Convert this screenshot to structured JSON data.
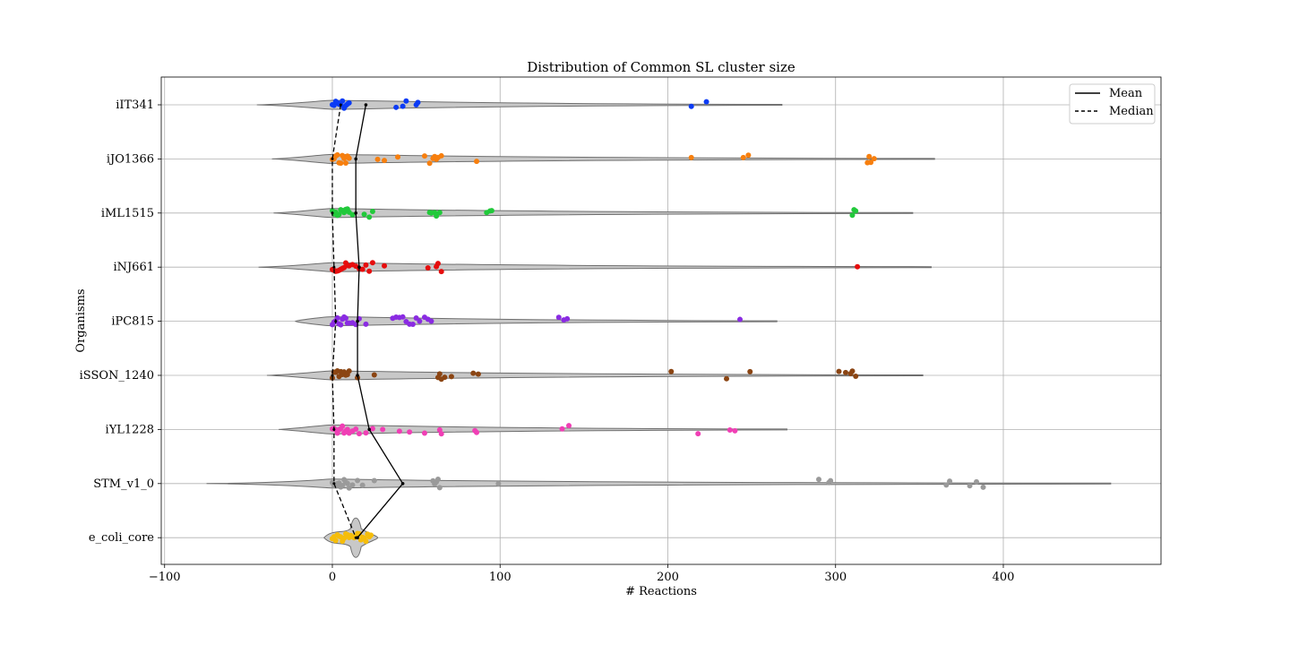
{
  "chart_data": {
    "type": "violin-strip",
    "title": "Distribution of Common SL cluster size",
    "xlabel": "# Reactions",
    "ylabel": "Organisms",
    "xlim": [
      -102,
      494
    ],
    "xticks": [
      -100,
      0,
      100,
      200,
      300,
      400
    ],
    "grid": true,
    "legend_position": "top-right",
    "legend": [
      {
        "label": "Mean",
        "style": "solid"
      },
      {
        "label": "Median",
        "style": "dashed"
      }
    ],
    "categories": [
      "iIT341",
      "iJO1366",
      "iML1515",
      "iNJ661",
      "iPC815",
      "iSSON_1240",
      "iYL1228",
      "STM_v1_0",
      "e_coli_core"
    ],
    "colors": [
      "#0b3bf5",
      "#f77f0e",
      "#22c93b",
      "#e60d0d",
      "#8a2be2",
      "#8b4513",
      "#f03fb5",
      "#9a9a9a",
      "#f5bd0b"
    ],
    "mean": [
      20,
      14,
      14,
      16,
      15,
      15,
      22,
      42,
      15
    ],
    "median": [
      5,
      0,
      0,
      1,
      2,
      0,
      1,
      1,
      14
    ],
    "violin_range": [
      [
        -45,
        268
      ],
      [
        -36,
        359
      ],
      [
        -35,
        346
      ],
      [
        -44,
        357
      ],
      [
        -22,
        265
      ],
      [
        -39,
        352
      ],
      [
        -32,
        271
      ],
      [
        -75,
        464
      ],
      [
        -5,
        27
      ]
    ],
    "points": [
      [
        0,
        1,
        2,
        3,
        4,
        5,
        6,
        7,
        8,
        9,
        10,
        38,
        42,
        44,
        50,
        51,
        214,
        223
      ],
      [
        0,
        1,
        2,
        3,
        4,
        5,
        6,
        7,
        8,
        9,
        10,
        27,
        31,
        39,
        55,
        58,
        60,
        61,
        62,
        63,
        65,
        86,
        214,
        245,
        248,
        319,
        320,
        321,
        323
      ],
      [
        0,
        1,
        2,
        3,
        4,
        5,
        6,
        7,
        8,
        9,
        10,
        12,
        19,
        22,
        24,
        58,
        59,
        61,
        62,
        64,
        92,
        94,
        95,
        310,
        311,
        312
      ],
      [
        0,
        1,
        2,
        3,
        4,
        5,
        6,
        7,
        8,
        9,
        10,
        12,
        14,
        16,
        18,
        20,
        22,
        24,
        31,
        57,
        62,
        63,
        65,
        313
      ],
      [
        0,
        1,
        2,
        3,
        4,
        5,
        6,
        7,
        8,
        9,
        10,
        12,
        14,
        16,
        20,
        36,
        38,
        40,
        42,
        44,
        46,
        48,
        50,
        52,
        55,
        57,
        59,
        135,
        138,
        140,
        243
      ],
      [
        0,
        1,
        2,
        3,
        4,
        5,
        6,
        7,
        8,
        9,
        10,
        15,
        25,
        63,
        64,
        65,
        67,
        71,
        84,
        87,
        202,
        235,
        249,
        302,
        306,
        309,
        310,
        312
      ],
      [
        0,
        1,
        2,
        3,
        4,
        5,
        6,
        7,
        8,
        9,
        10,
        12,
        14,
        16,
        20,
        24,
        30,
        40,
        46,
        55,
        64,
        65,
        85,
        86,
        137,
        141,
        218,
        237,
        240
      ],
      [
        0,
        1,
        2,
        3,
        4,
        5,
        6,
        7,
        8,
        9,
        10,
        12,
        15,
        18,
        25,
        60,
        61,
        62,
        63,
        64,
        99,
        290,
        296,
        297,
        366,
        368,
        380,
        384,
        388
      ],
      [
        0,
        1,
        2,
        3,
        4,
        5,
        6,
        7,
        8,
        9,
        10,
        11,
        12,
        13,
        14,
        15,
        16,
        17,
        18,
        19,
        20,
        21,
        22,
        23
      ]
    ]
  }
}
